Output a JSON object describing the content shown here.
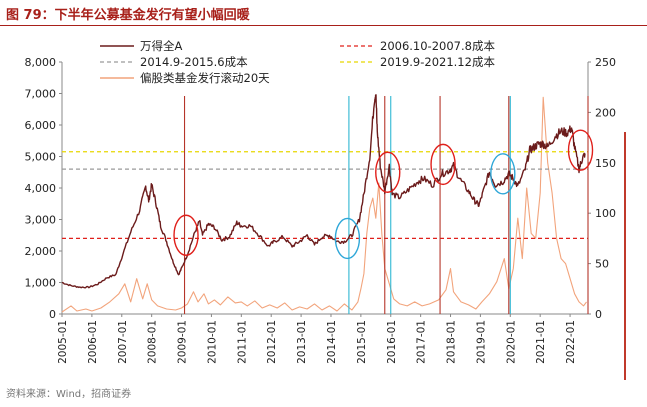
{
  "title": "图 79：下半年公募基金发行有望小幅回暖",
  "source": "资料来源：Wind，招商证券",
  "colors": {
    "wind_a": "#6b1b1b",
    "fund_issue": "#f2a47c",
    "cost_2006": "#e0201b",
    "cost_2014": "#9a9a9a",
    "cost_2019": "#e8d800",
    "marker_red": "#b5352a",
    "marker_cyan": "#2fb7d3",
    "circle_red": "#e0201b",
    "circle_cyan": "#2fa7d8",
    "title": "#a8201a"
  },
  "chart_data": {
    "type": "line",
    "title": "下半年公募基金发行有望小幅回暖",
    "x_range": [
      2005.0,
      2022.6
    ],
    "x_ticks": [
      "2005-01",
      "2006-01",
      "2007-01",
      "2008-01",
      "2009-01",
      "2010-01",
      "2011-01",
      "2012-01",
      "2013-01",
      "2014-01",
      "2015-01",
      "2016-01",
      "2017-01",
      "2018-01",
      "2019-01",
      "2020-01",
      "2021-01",
      "2022-01"
    ],
    "y_left": {
      "min": 0,
      "max": 8000,
      "ticks": [
        "0",
        "1,000",
        "2,000",
        "3,000",
        "4,000",
        "5,000",
        "6,000",
        "7,000",
        "8,000"
      ]
    },
    "y_right": {
      "min": 0,
      "max": 250,
      "ticks": [
        "0",
        "50",
        "100",
        "150",
        "200",
        "250"
      ]
    },
    "legend": {
      "wind_a": "万得全A",
      "fund_issue": "偏股类基金发行滚动20天",
      "cost_2006": "2006.10-2007.8成本",
      "cost_2014": "2014.9-2015.6成本",
      "cost_2019": "2019.9-2021.12成本"
    },
    "series": [
      {
        "name": "万得全A",
        "axis": "left",
        "points": [
          [
            2005.0,
            1000
          ],
          [
            2005.3,
            900
          ],
          [
            2005.6,
            850
          ],
          [
            2005.9,
            850
          ],
          [
            2006.2,
            950
          ],
          [
            2006.5,
            1150
          ],
          [
            2006.8,
            1250
          ],
          [
            2007.0,
            1800
          ],
          [
            2007.3,
            2600
          ],
          [
            2007.6,
            3300
          ],
          [
            2007.8,
            4050
          ],
          [
            2007.9,
            3600
          ],
          [
            2008.0,
            4100
          ],
          [
            2008.15,
            3500
          ],
          [
            2008.3,
            2800
          ],
          [
            2008.5,
            2300
          ],
          [
            2008.7,
            1700
          ],
          [
            2008.9,
            1250
          ],
          [
            2009.0,
            1450
          ],
          [
            2009.2,
            1900
          ],
          [
            2009.45,
            2600
          ],
          [
            2009.6,
            2950
          ],
          [
            2009.7,
            2500
          ],
          [
            2009.9,
            2850
          ],
          [
            2010.1,
            2750
          ],
          [
            2010.35,
            2350
          ],
          [
            2010.6,
            2450
          ],
          [
            2010.85,
            2900
          ],
          [
            2011.0,
            2800
          ],
          [
            2011.3,
            2800
          ],
          [
            2011.6,
            2500
          ],
          [
            2011.9,
            2150
          ],
          [
            2012.1,
            2300
          ],
          [
            2012.4,
            2450
          ],
          [
            2012.7,
            2150
          ],
          [
            2012.95,
            2300
          ],
          [
            2013.2,
            2500
          ],
          [
            2013.45,
            2200
          ],
          [
            2013.7,
            2450
          ],
          [
            2013.95,
            2500
          ],
          [
            2014.2,
            2300
          ],
          [
            2014.45,
            2300
          ],
          [
            2014.7,
            2500
          ],
          [
            2014.95,
            3000
          ],
          [
            2015.1,
            3800
          ],
          [
            2015.3,
            5000
          ],
          [
            2015.45,
            6800
          ],
          [
            2015.5,
            7000
          ],
          [
            2015.55,
            5800
          ],
          [
            2015.65,
            4700
          ],
          [
            2015.8,
            3900
          ],
          [
            2015.95,
            4700
          ],
          [
            2016.05,
            3800
          ],
          [
            2016.3,
            3700
          ],
          [
            2016.6,
            3950
          ],
          [
            2016.9,
            4200
          ],
          [
            2017.1,
            4300
          ],
          [
            2017.4,
            4100
          ],
          [
            2017.7,
            4450
          ],
          [
            2017.95,
            4550
          ],
          [
            2018.1,
            4700
          ],
          [
            2018.3,
            4300
          ],
          [
            2018.6,
            3900
          ],
          [
            2018.8,
            3600
          ],
          [
            2018.95,
            3450
          ],
          [
            2019.1,
            3900
          ],
          [
            2019.3,
            4500
          ],
          [
            2019.5,
            4100
          ],
          [
            2019.75,
            4200
          ],
          [
            2019.95,
            4450
          ],
          [
            2020.1,
            4300
          ],
          [
            2020.25,
            4050
          ],
          [
            2020.5,
            4600
          ],
          [
            2020.65,
            5200
          ],
          [
            2020.8,
            5300
          ],
          [
            2020.95,
            5400
          ],
          [
            2021.1,
            5400
          ],
          [
            2021.25,
            5300
          ],
          [
            2021.5,
            5650
          ],
          [
            2021.7,
            5800
          ],
          [
            2021.9,
            5750
          ],
          [
            2022.05,
            5900
          ],
          [
            2022.15,
            5300
          ],
          [
            2022.3,
            4600
          ],
          [
            2022.4,
            4900
          ],
          [
            2022.5,
            5100
          ]
        ]
      },
      {
        "name": "偏股类基金发行滚动20天",
        "axis": "right",
        "points": [
          [
            2005.0,
            2
          ],
          [
            2005.3,
            8
          ],
          [
            2005.5,
            3
          ],
          [
            2005.8,
            5
          ],
          [
            2006.0,
            3
          ],
          [
            2006.3,
            6
          ],
          [
            2006.6,
            12
          ],
          [
            2006.9,
            20
          ],
          [
            2007.1,
            30
          ],
          [
            2007.3,
            12
          ],
          [
            2007.5,
            35
          ],
          [
            2007.7,
            15
          ],
          [
            2007.85,
            30
          ],
          [
            2008.0,
            14
          ],
          [
            2008.2,
            8
          ],
          [
            2008.5,
            5
          ],
          [
            2008.8,
            4
          ],
          [
            2009.0,
            6
          ],
          [
            2009.2,
            10
          ],
          [
            2009.4,
            22
          ],
          [
            2009.55,
            12
          ],
          [
            2009.75,
            20
          ],
          [
            2009.9,
            10
          ],
          [
            2010.1,
            14
          ],
          [
            2010.3,
            9
          ],
          [
            2010.55,
            17
          ],
          [
            2010.8,
            11
          ],
          [
            2011.0,
            12
          ],
          [
            2011.2,
            8
          ],
          [
            2011.45,
            13
          ],
          [
            2011.7,
            6
          ],
          [
            2011.95,
            9
          ],
          [
            2012.2,
            6
          ],
          [
            2012.45,
            11
          ],
          [
            2012.7,
            4
          ],
          [
            2012.95,
            7
          ],
          [
            2013.2,
            5
          ],
          [
            2013.45,
            10
          ],
          [
            2013.7,
            4
          ],
          [
            2013.95,
            8
          ],
          [
            2014.2,
            3
          ],
          [
            2014.45,
            10
          ],
          [
            2014.7,
            4
          ],
          [
            2014.9,
            12
          ],
          [
            2015.0,
            25
          ],
          [
            2015.1,
            40
          ],
          [
            2015.2,
            80
          ],
          [
            2015.3,
            105
          ],
          [
            2015.4,
            115
          ],
          [
            2015.5,
            95
          ],
          [
            2015.6,
            130
          ],
          [
            2015.7,
            80
          ],
          [
            2015.8,
            45
          ],
          [
            2015.95,
            30
          ],
          [
            2016.1,
            15
          ],
          [
            2016.3,
            10
          ],
          [
            2016.55,
            8
          ],
          [
            2016.8,
            12
          ],
          [
            2017.05,
            8
          ],
          [
            2017.3,
            10
          ],
          [
            2017.6,
            14
          ],
          [
            2017.85,
            24
          ],
          [
            2018.0,
            45
          ],
          [
            2018.1,
            22
          ],
          [
            2018.35,
            12
          ],
          [
            2018.6,
            9
          ],
          [
            2018.85,
            5
          ],
          [
            2019.05,
            12
          ],
          [
            2019.3,
            20
          ],
          [
            2019.55,
            32
          ],
          [
            2019.8,
            55
          ],
          [
            2019.95,
            25
          ],
          [
            2020.1,
            45
          ],
          [
            2020.25,
            95
          ],
          [
            2020.4,
            55
          ],
          [
            2020.55,
            125
          ],
          [
            2020.7,
            80
          ],
          [
            2020.85,
            75
          ],
          [
            2021.0,
            120
          ],
          [
            2021.1,
            215
          ],
          [
            2021.25,
            150
          ],
          [
            2021.4,
            120
          ],
          [
            2021.55,
            75
          ],
          [
            2021.7,
            55
          ],
          [
            2021.85,
            50
          ],
          [
            2022.0,
            35
          ],
          [
            2022.15,
            20
          ],
          [
            2022.3,
            12
          ],
          [
            2022.45,
            8
          ],
          [
            2022.55,
            12
          ]
        ]
      }
    ],
    "cost_lines": [
      {
        "name": "2006.10-2007.8成本",
        "axis": "left",
        "value": 2400,
        "color_key": "cost_2006"
      },
      {
        "name": "2014.9-2015.6成本",
        "axis": "left",
        "value": 4600,
        "color_key": "cost_2014"
      },
      {
        "name": "2019.9-2021.12成本",
        "axis": "left",
        "value": 5150,
        "color_key": "cost_2019"
      }
    ],
    "markers_red": [
      2009.1,
      2015.8,
      2017.65,
      2019.95,
      2022.6
    ],
    "markers_cyan": [
      2014.6,
      2016.0,
      2020.0
    ],
    "circles": [
      {
        "x": 2009.15,
        "y": 2500,
        "color_key": "circle_red"
      },
      {
        "x": 2014.55,
        "y": 2400,
        "color_key": "circle_cyan"
      },
      {
        "x": 2015.9,
        "y": 4500,
        "color_key": "circle_red"
      },
      {
        "x": 2017.75,
        "y": 4750,
        "color_key": "circle_red"
      },
      {
        "x": 2019.75,
        "y": 4450,
        "color_key": "circle_cyan"
      },
      {
        "x": 2022.35,
        "y": 5200,
        "color_key": "circle_red"
      }
    ]
  }
}
